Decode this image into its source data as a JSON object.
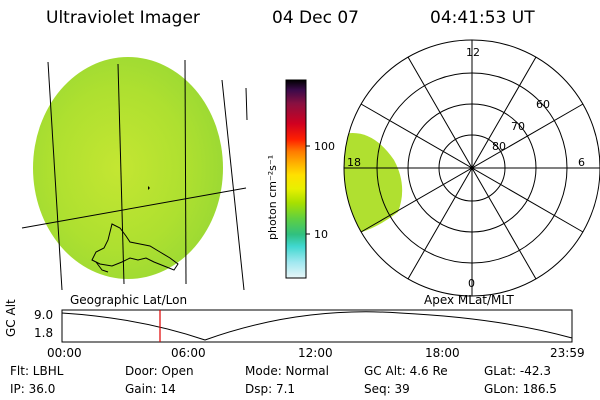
{
  "header": {
    "title": "Ultraviolet Imager",
    "date": "04 Dec 07",
    "time": "04:41:53 UT"
  },
  "left_panel": {
    "label": "Geographic Lat/Lon"
  },
  "colorbar": {
    "label": "photon cm⁻²s⁻¹",
    "tick_100": "100",
    "tick_10": "10",
    "scale": "log",
    "colors": [
      "#000000",
      "#3a0a4a",
      "#8a1040",
      "#d00020",
      "#ff2000",
      "#ff7a00",
      "#ffb000",
      "#ffe000",
      "#e8f000",
      "#a8e000",
      "#60d040",
      "#30c080",
      "#40d8d0",
      "#a0e8f0",
      "#e0f4f8"
    ]
  },
  "right_panel": {
    "label": "Apex  MLat/MLT",
    "mlt_labels": [
      "12",
      "6",
      "0",
      "18"
    ],
    "mlat_labels": [
      "60",
      "70",
      "80"
    ]
  },
  "altitude_plot": {
    "ylabel": "GC Alt",
    "ytick_high": "9.0",
    "ytick_low": "1.8",
    "xticks": [
      "00:00",
      "06:00",
      "12:00",
      "18:00",
      "23:59"
    ],
    "marker_color": "#e00000"
  },
  "info": {
    "flt": "Flt: LBHL",
    "ip": "IP: 36.0",
    "door": "Door: Open",
    "gain": "Gain: 14",
    "mode": "Mode: Normal",
    "dsp": "Dsp:     7.1",
    "gcalt": "GC Alt: 4.6 Re",
    "seq": "Seq: 39",
    "glat": "GLat: -42.3",
    "glon": "GLon: 186.5"
  },
  "colors": {
    "disk_fill": "#a8dc30",
    "disk_highlight": "#c8e830",
    "oval_fill": "#b0e030",
    "line": "#000000"
  }
}
